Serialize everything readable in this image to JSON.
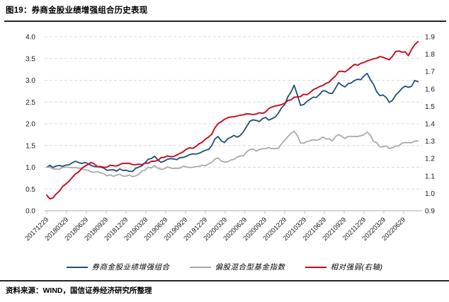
{
  "figure": {
    "title": "图19：券商金股业绩增强组合历史表现",
    "source": "资料来源：WIND，国信证券经济研究所整理"
  },
  "chart_data": {
    "type": "line",
    "title": "券商金股业绩增强组合历史表现",
    "grid": "horizontal-dashed",
    "legend_position": "bottom",
    "x_unit": "quarter-index aligned to x_tick_labels (data extends ~0.75 quarter past last label)",
    "x_domain": [
      0,
      18.75
    ],
    "x_tick_labels": [
      "20171229",
      "20180329",
      "20180629",
      "20180929",
      "20181229",
      "20190329",
      "20190629",
      "20190929",
      "20191229",
      "20200329",
      "20200629",
      "20200929",
      "20201229",
      "20210329",
      "20210629",
      "20210929",
      "20211229",
      "20220329",
      "20220629"
    ],
    "y_axis_left": {
      "min": 0.0,
      "max": 4.0,
      "step": 0.5,
      "labels": [
        "0.0",
        "0.5",
        "1.0",
        "1.5",
        "2.0",
        "2.5",
        "3.0",
        "3.5",
        "4.0"
      ]
    },
    "y_axis_right": {
      "min": 0.9,
      "max": 1.9,
      "step": 0.1,
      "labels": [
        "0.9",
        "1.0",
        "1.1",
        "1.2",
        "1.3",
        "1.4",
        "1.5",
        "1.6",
        "1.7",
        "1.8",
        "1.9"
      ]
    },
    "colors": {
      "blue": "#1f4e79",
      "gray": "#a6a6a6",
      "red": "#c9081e",
      "gridline": "#d9d9d9",
      "axis": "#bfbfbf",
      "rule": "#262626"
    },
    "series": [
      {
        "name": "券商金股业绩增强组合",
        "axis": "left",
        "color": "#1f4e79",
        "points": [
          [
            0,
            1.0
          ],
          [
            0.15,
            1.04
          ],
          [
            0.35,
            0.99
          ],
          [
            0.6,
            1.03
          ],
          [
            1,
            1.05
          ],
          [
            1.45,
            1.12
          ],
          [
            1.8,
            1.1
          ],
          [
            2,
            1.08
          ],
          [
            2.5,
            1.02
          ],
          [
            3,
            0.96
          ],
          [
            3.4,
            0.92
          ],
          [
            3.7,
            0.96
          ],
          [
            4,
            0.945
          ],
          [
            4.35,
            0.92
          ],
          [
            4.7,
            1.02
          ],
          [
            5,
            1.14
          ],
          [
            5.45,
            1.24
          ],
          [
            5.8,
            1.1
          ],
          [
            6,
            1.21
          ],
          [
            6.5,
            1.18
          ],
          [
            7,
            1.26
          ],
          [
            7.5,
            1.3
          ],
          [
            8,
            1.4
          ],
          [
            8.3,
            1.47
          ],
          [
            8.6,
            1.75
          ],
          [
            8.75,
            1.55
          ],
          [
            8.85,
            1.62
          ],
          [
            9,
            1.58
          ],
          [
            9.3,
            1.7
          ],
          [
            9.7,
            1.72
          ],
          [
            10,
            1.89
          ],
          [
            10.3,
            2.1
          ],
          [
            10.6,
            2.05
          ],
          [
            11,
            2.13
          ],
          [
            11.3,
            2.08
          ],
          [
            11.7,
            2.25
          ],
          [
            12,
            2.46
          ],
          [
            12.5,
            2.88
          ],
          [
            12.8,
            2.42
          ],
          [
            13,
            2.46
          ],
          [
            13.3,
            2.58
          ],
          [
            13.6,
            2.62
          ],
          [
            14,
            2.77
          ],
          [
            14.35,
            2.63
          ],
          [
            14.7,
            2.95
          ],
          [
            15,
            2.86
          ],
          [
            15.4,
            2.96
          ],
          [
            15.8,
            3.02
          ],
          [
            16,
            3.1
          ],
          [
            16.2,
            3.15
          ],
          [
            16.5,
            2.86
          ],
          [
            16.9,
            2.56
          ],
          [
            17,
            2.71
          ],
          [
            17.3,
            2.48
          ],
          [
            17.6,
            2.65
          ],
          [
            18,
            2.88
          ],
          [
            18.3,
            2.8
          ],
          [
            18.55,
            2.98
          ],
          [
            18.75,
            2.97
          ]
        ]
      },
      {
        "name": "偏股混合型基金指数",
        "axis": "left",
        "color": "#a6a6a6",
        "points": [
          [
            0,
            1.0
          ],
          [
            0.15,
            1.02
          ],
          [
            0.35,
            0.95
          ],
          [
            0.6,
            0.97
          ],
          [
            1,
            0.99
          ],
          [
            1.45,
            0.97
          ],
          [
            2,
            0.93
          ],
          [
            2.5,
            0.9
          ],
          [
            3,
            0.83
          ],
          [
            3.4,
            0.79
          ],
          [
            3.7,
            0.82
          ],
          [
            4,
            0.805
          ],
          [
            4.35,
            0.8
          ],
          [
            4.7,
            0.86
          ],
          [
            5,
            0.97
          ],
          [
            5.45,
            1.03
          ],
          [
            5.8,
            0.93
          ],
          [
            6,
            1.0
          ],
          [
            6.5,
            0.97
          ],
          [
            7,
            1.01
          ],
          [
            7.5,
            1.02
          ],
          [
            8,
            1.06
          ],
          [
            8.3,
            1.1
          ],
          [
            8.6,
            1.245
          ],
          [
            8.75,
            1.1
          ],
          [
            8.85,
            1.14
          ],
          [
            9,
            1.11
          ],
          [
            9.3,
            1.18
          ],
          [
            9.7,
            1.22
          ],
          [
            10,
            1.3
          ],
          [
            10.3,
            1.42
          ],
          [
            10.6,
            1.38
          ],
          [
            11,
            1.45
          ],
          [
            11.3,
            1.42
          ],
          [
            11.7,
            1.46
          ],
          [
            12,
            1.62
          ],
          [
            12.5,
            1.85
          ],
          [
            12.8,
            1.54
          ],
          [
            13,
            1.57
          ],
          [
            13.3,
            1.63
          ],
          [
            13.6,
            1.64
          ],
          [
            14,
            1.7
          ],
          [
            14.35,
            1.6
          ],
          [
            14.7,
            1.74
          ],
          [
            15,
            1.68
          ],
          [
            15.4,
            1.7
          ],
          [
            15.8,
            1.72
          ],
          [
            16,
            1.77
          ],
          [
            16.2,
            1.8
          ],
          [
            16.5,
            1.6
          ],
          [
            16.9,
            1.45
          ],
          [
            17,
            1.52
          ],
          [
            17.3,
            1.4
          ],
          [
            17.6,
            1.47
          ],
          [
            18,
            1.58
          ],
          [
            18.3,
            1.55
          ],
          [
            18.55,
            1.6
          ],
          [
            18.75,
            1.59
          ]
        ]
      },
      {
        "name": "相对强弱(右轴)",
        "axis": "right",
        "color": "#c9081e",
        "points": [
          [
            0,
            0.99
          ],
          [
            0.2,
            0.965
          ],
          [
            0.5,
            1.0
          ],
          [
            1,
            1.06
          ],
          [
            1.5,
            1.12
          ],
          [
            2,
            1.16
          ],
          [
            2.3,
            1.175
          ],
          [
            2.7,
            1.15
          ],
          [
            3,
            1.155
          ],
          [
            3.5,
            1.16
          ],
          [
            4,
            1.17
          ],
          [
            4.5,
            1.16
          ],
          [
            5,
            1.175
          ],
          [
            5.45,
            1.19
          ],
          [
            6,
            1.21
          ],
          [
            6.5,
            1.22
          ],
          [
            7,
            1.25
          ],
          [
            7.5,
            1.27
          ],
          [
            8,
            1.31
          ],
          [
            8.3,
            1.33
          ],
          [
            8.6,
            1.4
          ],
          [
            8.85,
            1.41
          ],
          [
            9,
            1.425
          ],
          [
            9.5,
            1.44
          ],
          [
            10,
            1.455
          ],
          [
            10.5,
            1.455
          ],
          [
            11,
            1.47
          ],
          [
            11.5,
            1.5
          ],
          [
            12,
            1.52
          ],
          [
            12.5,
            1.555
          ],
          [
            13,
            1.565
          ],
          [
            13.5,
            1.6
          ],
          [
            14,
            1.63
          ],
          [
            14.35,
            1.645
          ],
          [
            14.7,
            1.7
          ],
          [
            15,
            1.7
          ],
          [
            15.5,
            1.735
          ],
          [
            16,
            1.75
          ],
          [
            16.3,
            1.77
          ],
          [
            16.5,
            1.78
          ],
          [
            17,
            1.78
          ],
          [
            17.3,
            1.77
          ],
          [
            17.6,
            1.81
          ],
          [
            18,
            1.82
          ],
          [
            18.2,
            1.79
          ],
          [
            18.45,
            1.83
          ],
          [
            18.6,
            1.86
          ],
          [
            18.75,
            1.875
          ]
        ]
      }
    ]
  }
}
